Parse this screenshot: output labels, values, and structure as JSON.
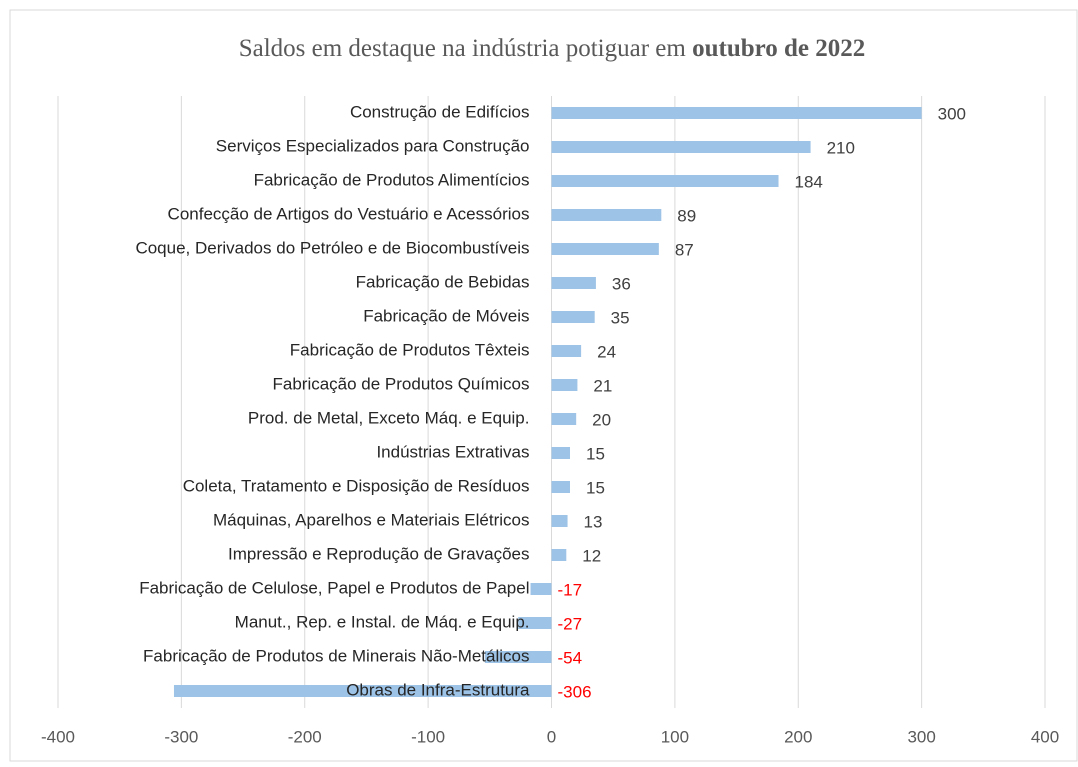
{
  "chart_data": {
    "type": "barh",
    "title": "Saldos em destaque na indústria potiguar em",
    "title_emphasis": "outubro de 2022",
    "categories": [
      "Construção de Edifícios",
      "Serviços Especializados para Construção",
      "Fabricação de Produtos Alimentícios",
      "Confecção de Artigos do Vestuário e Acessórios",
      "Coque,  Derivados do Petróleo e de Biocombustíveis",
      "Fabricação de Bebidas",
      "Fabricação de Móveis",
      "Fabricação de Produtos Têxteis",
      "Fabricação de Produtos Químicos",
      "Prod. de Metal, Exceto Máq. e Equip.",
      "Indústrias Extrativas",
      "Coleta, Tratamento e Disposição de Resíduos",
      "Máquinas, Aparelhos e Materiais Elétricos",
      "Impressão e Reprodução de Gravações",
      "Fabricação de Celulose, Papel e Produtos de Papel",
      "Manut., Rep. e Instal. de Máq. e Equip.",
      "Fabricação de Produtos de Minerais Não-Metálicos",
      "Obras de Infra-Estrutura"
    ],
    "values": [
      300,
      210,
      184,
      89,
      87,
      36,
      35,
      24,
      21,
      20,
      15,
      15,
      13,
      12,
      -17,
      -27,
      -54,
      -306
    ],
    "color": "#9dc3e6",
    "label_color": "#404040",
    "negative_label_color": "#ff0000",
    "xlim": [
      -400,
      400
    ],
    "xticks": [
      -400,
      -300,
      -200,
      -100,
      0,
      100,
      200,
      300,
      400
    ],
    "grid": true
  }
}
